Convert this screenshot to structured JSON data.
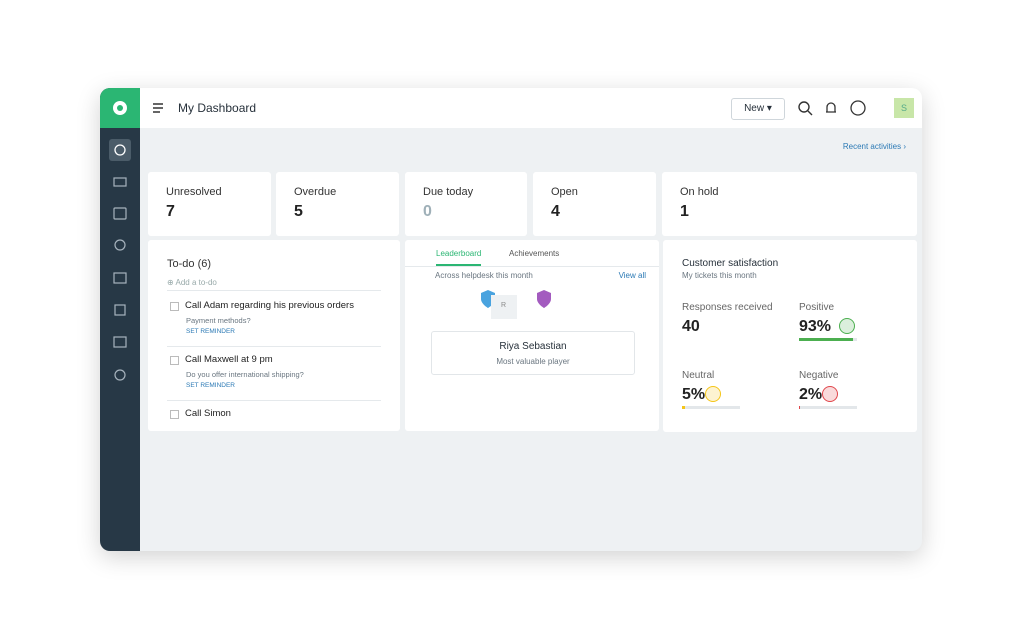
{
  "header": {
    "title": "My Dashboard",
    "new_button": "New",
    "user_initial": "S"
  },
  "subbar": {
    "recent_activities": "Recent activities"
  },
  "stats": [
    {
      "label": "Unresolved",
      "value": 7
    },
    {
      "label": "Overdue",
      "value": 5
    },
    {
      "label": "Due today",
      "value": 0
    },
    {
      "label": "Open",
      "value": 4
    },
    {
      "label": "On hold",
      "value": 1
    }
  ],
  "todo": {
    "title": "To-do (6)",
    "add": "Add a to-do",
    "items": [
      {
        "title": "Call Adam regarding his previous orders",
        "note": "Payment methods?",
        "reminder": "SET REMINDER"
      },
      {
        "title": "Call Maxwell at 9 pm",
        "note": "Do you offer international shipping?",
        "reminder": "SET REMINDER"
      },
      {
        "title": "Call Simon"
      }
    ]
  },
  "leaderboard": {
    "tabs": [
      "Leaderboard",
      "Achievements"
    ],
    "subtitle": "Across helpdesk this month",
    "view_all": "View all",
    "avatar": "R",
    "name": "Riya Sebastian",
    "role": "Most valuable player"
  },
  "satisfaction": {
    "title": "Customer satisfaction",
    "subtitle": "My tickets this month",
    "responses": {
      "label": "Responses received",
      "value": 40
    },
    "items": [
      {
        "label": "Positive",
        "value": 93,
        "value_label": "93%",
        "color": "#4caf50"
      },
      {
        "label": "Neutral",
        "value": 5,
        "value_label": "5%",
        "color": "#f5c518"
      },
      {
        "label": "Negative",
        "value": 2,
        "value_label": "2%",
        "color": "#e0474c"
      }
    ]
  }
}
